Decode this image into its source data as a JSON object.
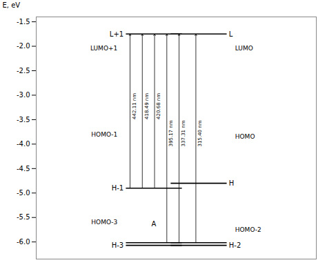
{
  "chart_data": {
    "type": "energy_levels",
    "ylabel": "E, eV",
    "ylim": [
      -6.35,
      -1.4
    ],
    "yticks": [
      {
        "value": -6.0,
        "label": "-6.0"
      },
      -5.5,
      {
        "value": -5.0,
        "label": "-5.0"
      },
      -4.5,
      {
        "value": -4.0,
        "label": "-4.0"
      },
      -3.5,
      {
        "value": -3.0,
        "label": "-3.0"
      },
      -2.5,
      {
        "value": -2.0,
        "label": "-2.0"
      },
      -1.5
    ],
    "tick_labels": "y",
    "columns": [
      {
        "levels": [
          {
            "label": "L+1",
            "values": [
              -1.75
            ]
          },
          {
            "label": "H-1",
            "values": [
              -4.9
            ]
          },
          {
            "label": "H-3",
            "values": [
              -6.07,
              -6.015
            ]
          }
        ],
        "transitions": [
          {
            "label": "442.11 nm",
            "from": -4.9,
            "to": -1.75
          },
          {
            "label": "418.49 nm",
            "from": -4.9,
            "to": -1.75
          },
          {
            "label": "420.68 nm",
            "from": -4.9,
            "to": -1.75
          },
          {
            "label": "395.17 nm",
            "from": -6.015,
            "to": -1.75
          },
          {
            "label": "337.31 nm",
            "from": -6.015,
            "to": -1.75
          }
        ],
        "orbitals": [
          {
            "text": "LUMO+1",
            "y": -2.05
          },
          {
            "text": "HOMO-1",
            "y": -3.8
          },
          {
            "text": "HOMO-3",
            "y": -5.6
          }
        ],
        "annotations": [
          {
            "text": "A",
            "y": -5.635
          }
        ]
      },
      {
        "levels": [
          {
            "label": "L",
            "values": [
              -1.75
            ]
          },
          {
            "label": "H",
            "values": [
              -4.8
            ]
          },
          {
            "label": "H-2",
            "values": [
              -6.07,
              -6.015
            ]
          }
        ],
        "transitions": [
          {
            "label": "315.40 nm",
            "from": -6.015,
            "to": -1.75
          }
        ],
        "orbitals": [
          {
            "text": "LUMO",
            "y": -2.05
          },
          {
            "text": "HOMO",
            "y": -3.85
          },
          {
            "text": "HOMO-2",
            "y": -5.75
          }
        ],
        "annotations": []
      }
    ]
  }
}
